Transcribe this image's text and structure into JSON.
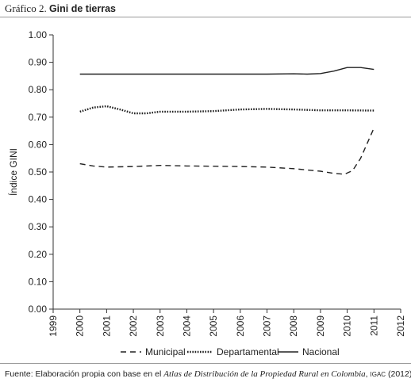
{
  "header": {
    "prefix": "Gráfico 2.",
    "title": "Gini de tierras"
  },
  "footer": {
    "source_prefix": "Fuente: Elaboración propia con base en el",
    "source_italic": "Atlas de Distribución de la Propiedad Rural en Colombia",
    "source_org": "IGAC",
    "source_suffix": "(2012)."
  },
  "chart_data": {
    "type": "line",
    "title": "Gini de tierras",
    "xlabel": "",
    "ylabel": "Índice GINI",
    "xlim": [
      1999,
      2012
    ],
    "ylim": [
      0,
      1
    ],
    "x_ticks": [
      "1999",
      "2000",
      "2001",
      "2002",
      "2003",
      "2004",
      "2005",
      "2006",
      "2007",
      "2008",
      "2009",
      "2010",
      "2011",
      "2012"
    ],
    "y_ticks": [
      "0.00",
      "0.10",
      "0.20",
      "0.30",
      "0.40",
      "0.50",
      "0.60",
      "0.70",
      "0.80",
      "0.90",
      "1.00"
    ],
    "grid": false,
    "legend_position": "bottom",
    "series": [
      {
        "name": "Municipal",
        "style": "dashed",
        "color": "#222222",
        "x": [
          2000,
          2000.5,
          2001,
          2002,
          2003,
          2004,
          2005,
          2006,
          2007,
          2008,
          2009,
          2009.5,
          2009.9,
          2010.2,
          2010.5,
          2011
        ],
        "y": [
          0.53,
          0.522,
          0.518,
          0.52,
          0.524,
          0.522,
          0.521,
          0.52,
          0.518,
          0.512,
          0.503,
          0.495,
          0.492,
          0.505,
          0.55,
          0.66
        ]
      },
      {
        "name": "Departamental",
        "style": "dotted",
        "color": "#222222",
        "x": [
          2000,
          2000.5,
          2001,
          2001.5,
          2002,
          2002.5,
          2003,
          2004,
          2005,
          2006,
          2007,
          2008,
          2009,
          2010,
          2011
        ],
        "y": [
          0.72,
          0.735,
          0.74,
          0.728,
          0.714,
          0.714,
          0.72,
          0.72,
          0.722,
          0.728,
          0.73,
          0.728,
          0.725,
          0.725,
          0.724
        ]
      },
      {
        "name": "Nacional",
        "style": "solid",
        "color": "#222222",
        "x": [
          2000,
          2001,
          2002,
          2003,
          2004,
          2005,
          2006,
          2007,
          2008,
          2008.5,
          2009,
          2009.5,
          2010,
          2010.5,
          2011
        ],
        "y": [
          0.857,
          0.857,
          0.857,
          0.857,
          0.857,
          0.857,
          0.857,
          0.857,
          0.858,
          0.857,
          0.859,
          0.868,
          0.881,
          0.881,
          0.874
        ]
      }
    ]
  }
}
